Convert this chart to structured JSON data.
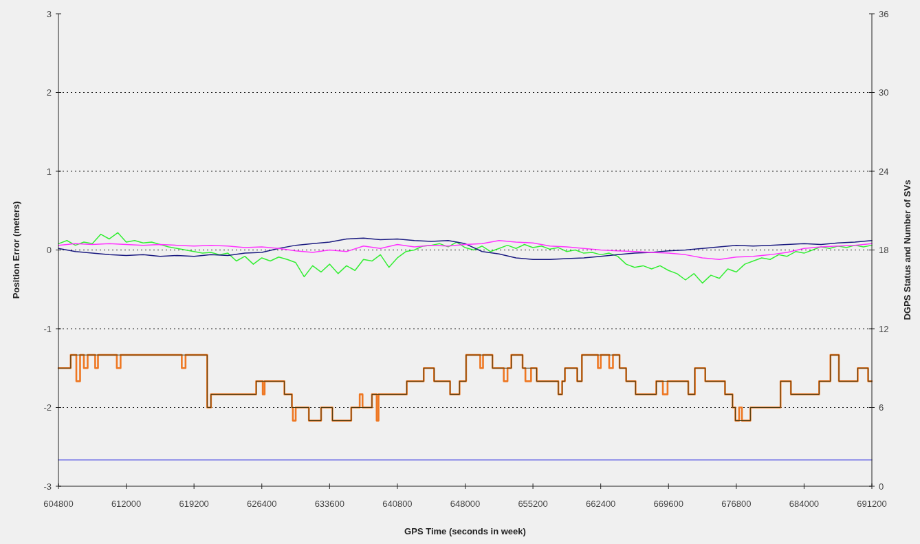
{
  "chart_data": {
    "type": "line",
    "xlabel": "GPS Time (seconds in week)",
    "ylabel": "Position Error (meters)",
    "y2label": "DGPS Status and Number of SVs",
    "xlim": [
      604800,
      691200
    ],
    "xticks": [
      604800,
      612000,
      619200,
      626400,
      633600,
      640800,
      648000,
      655200,
      662400,
      669600,
      676800,
      684000,
      691200
    ],
    "ylim": [
      -3,
      3
    ],
    "yticks": [
      -3,
      -2,
      -1,
      0,
      1,
      2,
      3
    ],
    "y2lim": [
      0,
      36
    ],
    "y2ticks": [
      0,
      6,
      12,
      18,
      24,
      30,
      36
    ],
    "grid": "y",
    "series": [
      {
        "color": "#33ee33",
        "x": [
          604800,
          605700,
          606600,
          607500,
          608400,
          609300,
          610200,
          611100,
          612000,
          612900,
          613800,
          614700,
          615600,
          616500,
          617400,
          618300,
          619200,
          620100,
          621000,
          621900,
          622800,
          623700,
          624600,
          625500,
          626400,
          627300,
          628200,
          629100,
          630000,
          630900,
          631800,
          632700,
          633600,
          634500,
          635400,
          636300,
          637200,
          638100,
          639000,
          639900,
          640800,
          641700,
          642600,
          643500,
          644400,
          645300,
          646200,
          647100,
          648000,
          648900,
          649800,
          650700,
          651600,
          652500,
          653400,
          654300,
          655200,
          656100,
          657000,
          657900,
          658800,
          659700,
          660600,
          661500,
          662400,
          663300,
          664200,
          665100,
          666000,
          666900,
          667800,
          668700,
          669600,
          670500,
          671400,
          672300,
          673200,
          674100,
          675000,
          675900,
          676800,
          677700,
          678600,
          679500,
          680400,
          681300,
          682200,
          683100,
          684000,
          684900,
          685800,
          686700,
          687600,
          688500,
          689400,
          690300,
          691200
        ],
        "values": [
          0.08,
          0.12,
          0.06,
          0.1,
          0.08,
          0.2,
          0.14,
          0.22,
          0.1,
          0.12,
          0.09,
          0.1,
          0.07,
          0.04,
          0.02,
          0,
          -0.02,
          -0.04,
          -0.03,
          -0.06,
          -0.04,
          -0.14,
          -0.08,
          -0.18,
          -0.1,
          -0.14,
          -0.09,
          -0.12,
          -0.16,
          -0.34,
          -0.2,
          -0.28,
          -0.18,
          -0.3,
          -0.2,
          -0.26,
          -0.12,
          -0.14,
          -0.06,
          -0.22,
          -0.1,
          -0.02,
          0,
          0.05,
          0.06,
          0.08,
          0.04,
          0.1,
          0.03,
          0,
          0.05,
          -0.02,
          0.02,
          0.06,
          0.02,
          0.07,
          0.03,
          0.05,
          0.01,
          0.03,
          -0.02,
          0,
          -0.04,
          -0.03,
          -0.06,
          -0.04,
          -0.08,
          -0.18,
          -0.22,
          -0.2,
          -0.24,
          -0.2,
          -0.26,
          -0.3,
          -0.38,
          -0.3,
          -0.42,
          -0.32,
          -0.36,
          -0.24,
          -0.28,
          -0.18,
          -0.14,
          -0.1,
          -0.12,
          -0.06,
          -0.08,
          -0.02,
          -0.04,
          0,
          0.04,
          0.02,
          0.05,
          0.03,
          0.06,
          0.04,
          0.06
        ]
      },
      {
        "color": "#1a1a80",
        "x": [
          604800,
          606600,
          608400,
          610200,
          612000,
          613800,
          615600,
          617400,
          619200,
          621000,
          622800,
          624600,
          626400,
          628200,
          630000,
          631800,
          633600,
          635400,
          637200,
          639000,
          640800,
          642600,
          644400,
          646200,
          648000,
          649800,
          651600,
          653400,
          655200,
          657000,
          658800,
          660600,
          662400,
          664200,
          666000,
          667800,
          669600,
          671400,
          673200,
          675000,
          676800,
          678600,
          680400,
          682200,
          684000,
          685800,
          687600,
          689400,
          691200
        ],
        "values": [
          0.02,
          -0.02,
          -0.04,
          -0.06,
          -0.07,
          -0.06,
          -0.08,
          -0.07,
          -0.08,
          -0.06,
          -0.07,
          -0.04,
          -0.03,
          0.02,
          0.06,
          0.08,
          0.1,
          0.14,
          0.15,
          0.13,
          0.14,
          0.12,
          0.11,
          0.12,
          0.08,
          -0.02,
          -0.05,
          -0.1,
          -0.12,
          -0.12,
          -0.11,
          -0.1,
          -0.08,
          -0.06,
          -0.04,
          -0.03,
          -0.01,
          0,
          0.02,
          0.04,
          0.06,
          0.05,
          0.06,
          0.07,
          0.08,
          0.07,
          0.09,
          0.1,
          0.12
        ]
      },
      {
        "color": "#ff33ff",
        "x": [
          604800,
          606600,
          608400,
          610200,
          612000,
          613800,
          615600,
          617400,
          619200,
          621000,
          622800,
          624600,
          626400,
          628200,
          630000,
          631800,
          633600,
          635400,
          637200,
          639000,
          640800,
          642600,
          644400,
          646200,
          648000,
          649800,
          651600,
          653400,
          655200,
          657000,
          658800,
          660600,
          662400,
          664200,
          666000,
          667800,
          669600,
          671400,
          673200,
          675000,
          676800,
          678600,
          680400,
          682200,
          684000,
          685800,
          687600,
          689400,
          691200
        ],
        "values": [
          0.06,
          0.08,
          0.07,
          0.08,
          0.07,
          0.06,
          0.07,
          0.06,
          0.05,
          0.06,
          0.05,
          0.03,
          0.04,
          0.02,
          -0.01,
          -0.03,
          0,
          -0.02,
          0.05,
          0.02,
          0.07,
          0.04,
          0.06,
          0.05,
          0.07,
          0.08,
          0.12,
          0.1,
          0.09,
          0.05,
          0.04,
          0.02,
          0,
          -0.01,
          -0.02,
          -0.03,
          -0.04,
          -0.06,
          -0.1,
          -0.12,
          -0.09,
          -0.08,
          -0.06,
          -0.03,
          0.02,
          0.04,
          0.05,
          0.06,
          0.08
        ]
      },
      {
        "type": "step",
        "axis": "y2",
        "color": "#ee7722",
        "x": [
          604800,
          606100,
          606700,
          607100,
          607500,
          607900,
          608700,
          609000,
          611000,
          611400,
          617900,
          618300,
          620600,
          621000,
          625800,
          626500,
          626700,
          628800,
          629600,
          629700,
          630000,
          631400,
          632700,
          633900,
          635900,
          636800,
          637100,
          638100,
          638600,
          638800,
          641800,
          643600,
          644700,
          646400,
          647400,
          648100,
          649600,
          649900,
          650900,
          652100,
          652500,
          652900,
          654100,
          654400,
          655000,
          655600,
          657900,
          658300,
          658600,
          659900,
          660400,
          662100,
          662400,
          663300,
          663700,
          664400,
          665100,
          666100,
          668300,
          669000,
          669500,
          671700,
          672400,
          673500,
          675600,
          676400,
          676700,
          677100,
          677400,
          678300,
          681500,
          682600,
          685600,
          686800,
          687700,
          689700,
          690800,
          691200
        ],
        "values": [
          9,
          10,
          8,
          10,
          9,
          10,
          9,
          10,
          9,
          10,
          9,
          10,
          6,
          7,
          8,
          7,
          8,
          7,
          6,
          5,
          6,
          5,
          6,
          5,
          6,
          7,
          6,
          7,
          5,
          7,
          8,
          9,
          8,
          7,
          8,
          10,
          9,
          10,
          9,
          8,
          9,
          10,
          9,
          8,
          9,
          8,
          7,
          8,
          9,
          8,
          10,
          9,
          10,
          9,
          10,
          9,
          8,
          7,
          8,
          7,
          8,
          7,
          9,
          8,
          7,
          6,
          5,
          6,
          5,
          6,
          8,
          7,
          8,
          10,
          8,
          9,
          8,
          8
        ]
      },
      {
        "type": "step",
        "axis": "y2",
        "color": "#4a3a10",
        "x": [
          604800,
          606100,
          620600,
          621000,
          625800,
          628800,
          629600,
          631400,
          632700,
          633900,
          635900,
          638100,
          641800,
          643600,
          644700,
          646400,
          647400,
          648100,
          650900,
          652900,
          654100,
          655600,
          657900,
          658300,
          658600,
          659900,
          660400,
          664400,
          665100,
          666100,
          668300,
          671700,
          672400,
          673500,
          675600,
          676400,
          676700,
          678300,
          681500,
          682600,
          685600,
          686800,
          687700,
          689700,
          690800,
          691200
        ],
        "values": [
          9,
          10,
          6,
          7,
          8,
          7,
          6,
          5,
          6,
          5,
          6,
          7,
          8,
          9,
          8,
          7,
          8,
          10,
          9,
          10,
          9,
          8,
          7,
          8,
          9,
          8,
          10,
          9,
          8,
          7,
          8,
          7,
          9,
          8,
          7,
          6,
          5,
          6,
          8,
          7,
          8,
          10,
          8,
          9,
          8,
          8
        ]
      },
      {
        "axis": "y2",
        "color": "#6f6fe6",
        "x": [
          604800,
          691200
        ],
        "values": [
          2,
          2
        ]
      }
    ]
  }
}
